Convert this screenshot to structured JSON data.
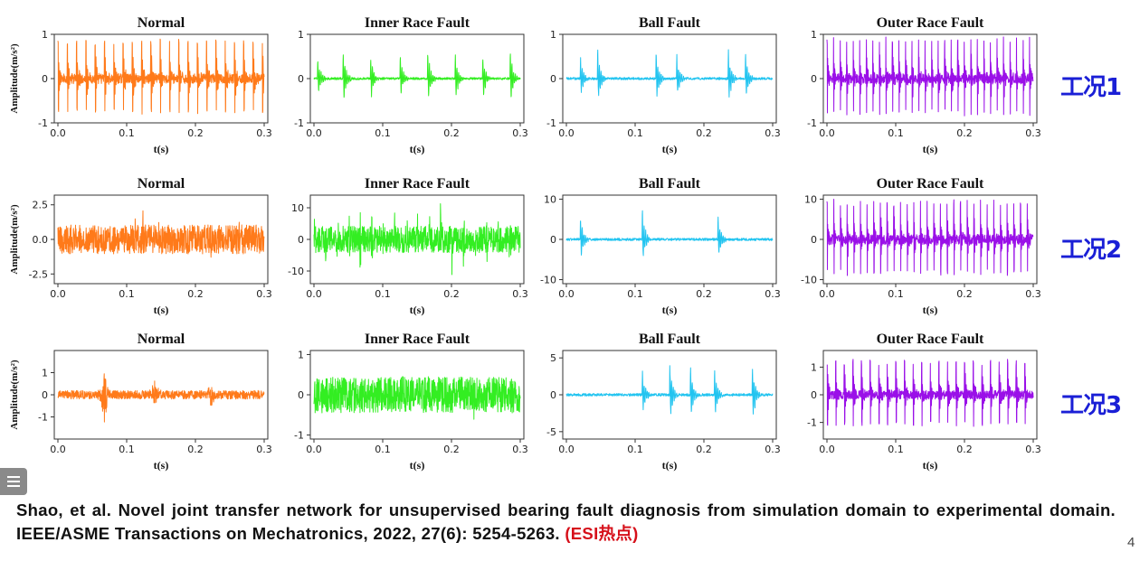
{
  "x_axis_label": "t(s)",
  "y_axis_label": "Amplitude(m/s²)",
  "x_ticks": [
    "0.0",
    "0.1",
    "0.2",
    "0.3"
  ],
  "conditions": [
    {
      "label": "工况1"
    },
    {
      "label": "工况2"
    },
    {
      "label": "工况3"
    }
  ],
  "colors": {
    "Normal": "#ff7a1a",
    "Inner Race Fault": "#33ee22",
    "Ball Fault": "#22c4f0",
    "Outer Race Fault": "#9a10e8",
    "condition_label": "#1a1fd6",
    "citation_tag": "#d6101a"
  },
  "chart_data": [
    {
      "type": "line",
      "condition": "工况1",
      "title": "Normal",
      "signal": "periodic spikes",
      "xlim": [
        0,
        0.3
      ],
      "ylim": [
        -1,
        1
      ],
      "yticks": [
        -1,
        0,
        1
      ],
      "approx_amplitude": 0.9,
      "impact_period_s": 0.0135
    },
    {
      "type": "line",
      "condition": "工况1",
      "title": "Inner Race Fault",
      "signal": "impulse bursts",
      "xlim": [
        0,
        0.3
      ],
      "ylim": [
        -1,
        1
      ],
      "yticks": [
        -1,
        0,
        1
      ],
      "approx_amplitude": 0.85,
      "impact_times_s": [
        0.005,
        0.042,
        0.082,
        0.125,
        0.165,
        0.205,
        0.245,
        0.285
      ]
    },
    {
      "type": "line",
      "condition": "工况1",
      "title": "Ball Fault",
      "signal": "impulse bursts",
      "xlim": [
        0,
        0.3
      ],
      "ylim": [
        -1,
        1
      ],
      "yticks": [
        -1,
        0,
        1
      ],
      "approx_amplitude": 0.9,
      "impact_times_s": [
        0.02,
        0.045,
        0.13,
        0.16,
        0.235,
        0.26
      ]
    },
    {
      "type": "line",
      "condition": "工况1",
      "title": "Outer Race Fault",
      "signal": "periodic spikes",
      "xlim": [
        0,
        0.3
      ],
      "ylim": [
        -1,
        1
      ],
      "yticks": [
        -1,
        0,
        1
      ],
      "approx_amplitude": 0.95,
      "impact_period_s": 0.0095
    },
    {
      "type": "line",
      "condition": "工况2",
      "title": "Normal",
      "signal": "noise",
      "xlim": [
        0,
        0.3
      ],
      "ylim": [
        -3.2,
        3.2
      ],
      "yticks": [
        -2.5,
        0.0,
        2.5
      ],
      "approx_amplitude": 3.0
    },
    {
      "type": "line",
      "condition": "工况2",
      "title": "Inner Race Fault",
      "signal": "noise with impulses",
      "xlim": [
        0,
        0.3
      ],
      "ylim": [
        -14,
        14
      ],
      "yticks": [
        -10,
        0,
        10
      ],
      "approx_amplitude": 12,
      "impact_period_s": 0.0167
    },
    {
      "type": "line",
      "condition": "工况2",
      "title": "Ball Fault",
      "signal": "impulse bursts",
      "xlim": [
        0,
        0.3
      ],
      "ylim": [
        -11,
        11
      ],
      "yticks": [
        -10,
        0,
        10
      ],
      "approx_amplitude": 10,
      "impact_times_s": [
        0.02,
        0.11,
        0.22
      ]
    },
    {
      "type": "line",
      "condition": "工况2",
      "title": "Outer Race Fault",
      "signal": "periodic spikes",
      "xlim": [
        0,
        0.3
      ],
      "ylim": [
        -11,
        11
      ],
      "yticks": [
        -10,
        0,
        10
      ],
      "approx_amplitude": 10,
      "impact_period_s": 0.0097
    },
    {
      "type": "line",
      "condition": "工况3",
      "title": "Normal",
      "signal": "noise with bursts",
      "xlim": [
        0,
        0.3
      ],
      "ylim": [
        -2,
        2
      ],
      "yticks": [
        -1,
        0,
        1
      ],
      "approx_amplitude": 1.6,
      "impact_times_s": [
        0.068,
        0.14,
        0.222
      ]
    },
    {
      "type": "line",
      "condition": "工况3",
      "title": "Inner Race Fault",
      "signal": "dense noise",
      "xlim": [
        0,
        0.3
      ],
      "ylim": [
        -1.1,
        1.1
      ],
      "yticks": [
        -1,
        0,
        1
      ],
      "approx_amplitude": 1.0
    },
    {
      "type": "line",
      "condition": "工况3",
      "title": "Ball Fault",
      "signal": "impulse bursts",
      "xlim": [
        0,
        0.3
      ],
      "ylim": [
        -6,
        6
      ],
      "yticks": [
        -5,
        0,
        5
      ],
      "approx_amplitude": 6,
      "impact_times_s": [
        0.11,
        0.15,
        0.18,
        0.215,
        0.27
      ]
    },
    {
      "type": "line",
      "condition": "工况3",
      "title": "Outer Race Fault",
      "signal": "periodic spikes",
      "xlim": [
        0,
        0.3
      ],
      "ylim": [
        -1.6,
        1.6
      ],
      "yticks": [
        -1,
        0,
        1
      ],
      "approx_amplitude": 1.3,
      "impact_period_s": 0.0125
    }
  ],
  "citation": {
    "text": "Shao, et al. Novel joint transfer network for unsupervised bearing fault diagnosis from simulation domain to experimental domain. IEEE/ASME Transactions on Mechatronics, 2022, 27(6): 5254-5263.",
    "tag": "(ESI热点)"
  },
  "page_number": "4"
}
